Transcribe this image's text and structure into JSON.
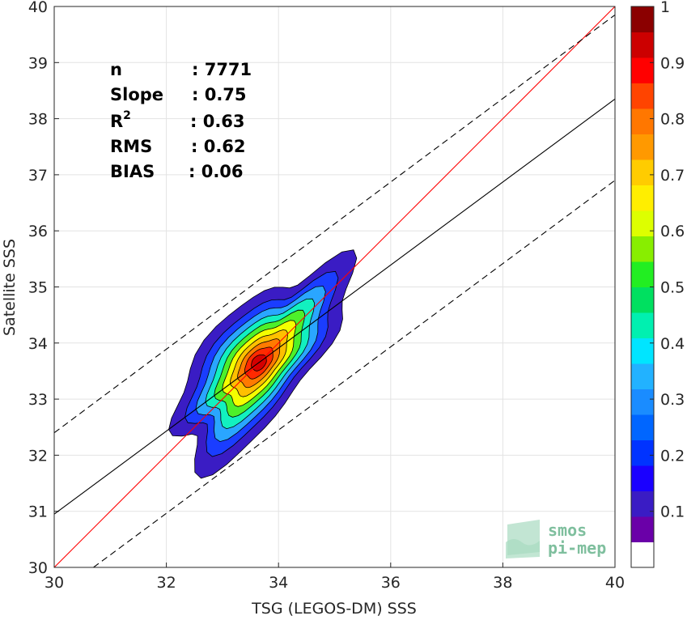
{
  "chart_data": {
    "type": "heatmap",
    "subtype": "density-contour-scatter",
    "xlabel": "TSG (LEGOS-DM) SSS",
    "ylabel": "Satellite SSS",
    "xlim": [
      30,
      40
    ],
    "ylim": [
      30,
      40
    ],
    "x_ticks": [
      "30",
      "32",
      "34",
      "36",
      "38",
      "40"
    ],
    "y_ticks": [
      "30",
      "31",
      "32",
      "33",
      "34",
      "35",
      "36",
      "37",
      "38",
      "39",
      "40"
    ],
    "grid": true,
    "stats": [
      {
        "label": "n",
        "value": ": 7771"
      },
      {
        "label": "Slope",
        "value": ": 0.75"
      },
      {
        "label": "R",
        "sup": "2",
        "value": ": 0.63"
      },
      {
        "label": "RMS",
        "value": ": 0.62"
      },
      {
        "label": "BIAS",
        "value": ": 0.06"
      }
    ],
    "lines": [
      {
        "role": "identity",
        "color": "#ff0000",
        "style": "solid",
        "points": [
          [
            30,
            30
          ],
          [
            40,
            40
          ]
        ]
      },
      {
        "role": "regression",
        "color": "#000000",
        "style": "solid",
        "points": [
          [
            30,
            30.95
          ],
          [
            40,
            38.35
          ]
        ]
      },
      {
        "role": "upper-bound",
        "color": "#000000",
        "style": "dashed",
        "points": [
          [
            30,
            32.4
          ],
          [
            40,
            39.85
          ]
        ]
      },
      {
        "role": "lower-bound",
        "color": "#000000",
        "style": "dashed",
        "points": [
          [
            30.7,
            30
          ],
          [
            40,
            36.9
          ]
        ]
      }
    ],
    "density_center": [
      33.65,
      33.65
    ],
    "contour_levels": [
      {
        "level": 0.1,
        "color": "#3a1cc4"
      },
      {
        "level": 0.2,
        "color": "#1a3dff"
      },
      {
        "level": 0.3,
        "color": "#2aa6ff"
      },
      {
        "level": 0.4,
        "color": "#12f0c0"
      },
      {
        "level": 0.5,
        "color": "#4df02a"
      },
      {
        "level": 0.6,
        "color": "#f4ff00"
      },
      {
        "level": 0.7,
        "color": "#ffc000"
      },
      {
        "level": 0.8,
        "color": "#ff7a00"
      },
      {
        "level": 0.9,
        "color": "#ff2a00"
      },
      {
        "level": 1.0,
        "color": "#d40000"
      }
    ],
    "colorbar": {
      "ticks": [
        "0.1",
        "0.2",
        "0.3",
        "0.4",
        "0.5",
        "0.6",
        "0.7",
        "0.8",
        "0.9",
        "1"
      ],
      "range": [
        0,
        1
      ],
      "colors": [
        "#ffffff",
        "#6a00a8",
        "#3a1cc4",
        "#1a00ff",
        "#0033ff",
        "#0066ff",
        "#1a8cff",
        "#22b2ff",
        "#00e5ff",
        "#00f0b0",
        "#00e060",
        "#22ee22",
        "#88ee00",
        "#ddff00",
        "#ffee00",
        "#ffcc00",
        "#ff9900",
        "#ff7700",
        "#ff4400",
        "#ff0000",
        "#cc0000",
        "#8b0000"
      ]
    },
    "logo": {
      "line1": "smos",
      "line2": "pi-mep"
    }
  }
}
